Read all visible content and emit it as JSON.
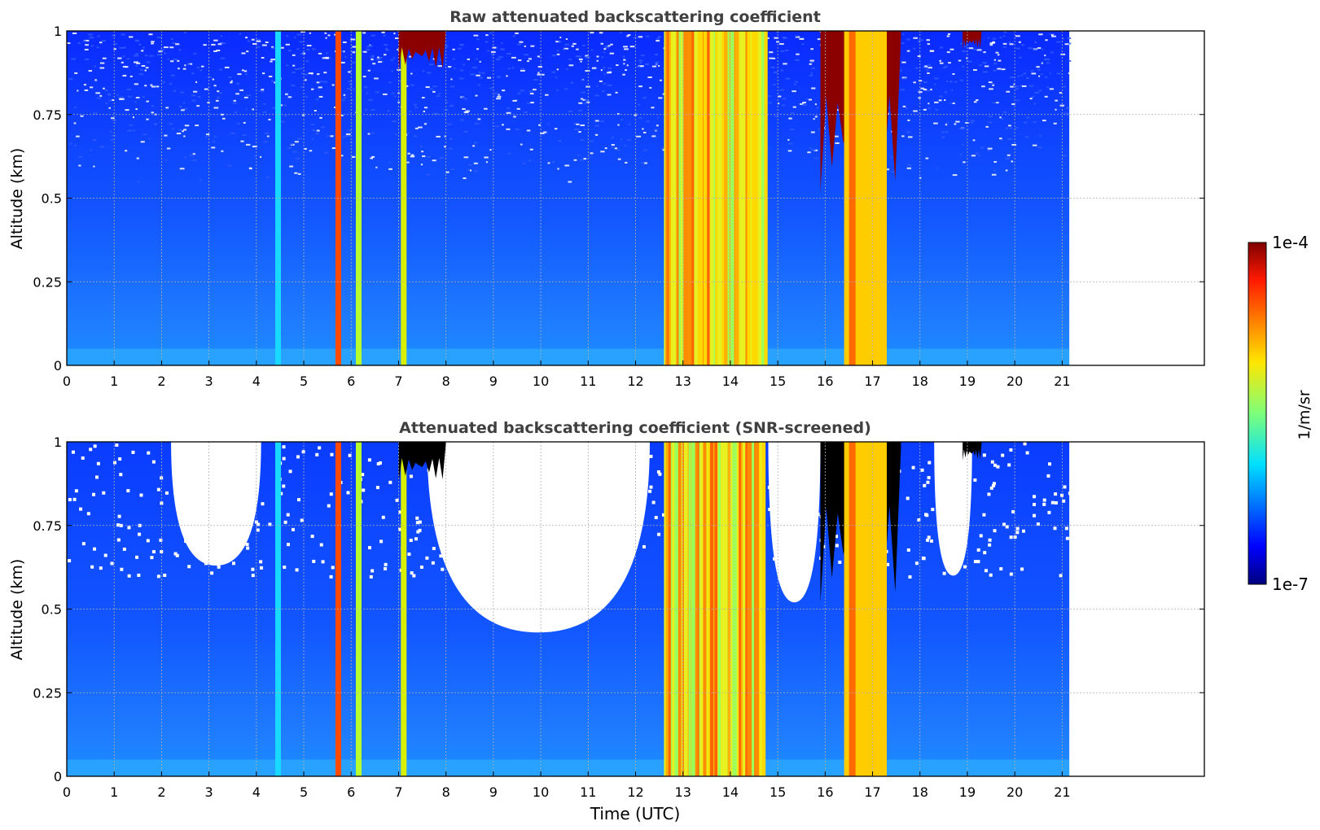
{
  "chart_data": [
    {
      "type": "heatmap",
      "title": "Raw attenuated backscattering coefficient",
      "ylabel": "Altitude (km)",
      "xlabel": "",
      "xlim": [
        0,
        24
      ],
      "ylim": [
        0,
        1
      ],
      "data_end_time": 21.15,
      "x_ticks": [
        "0",
        "1",
        "2",
        "3",
        "4",
        "5",
        "6",
        "7",
        "8",
        "9",
        "10",
        "11",
        "12",
        "13",
        "14",
        "15",
        "16",
        "17",
        "18",
        "19",
        "20",
        "21"
      ],
      "y_ticks": [
        "0",
        "0.25",
        "0.5",
        "0.75",
        "1"
      ],
      "grid": true,
      "screened": false,
      "features": [
        {
          "kind": "thin-column",
          "time": 4.45,
          "level": "cyan"
        },
        {
          "kind": "thin-column",
          "time": 5.72,
          "level": "orange-red"
        },
        {
          "kind": "thin-column",
          "time": 6.15,
          "level": "green-yellow"
        },
        {
          "kind": "thin-column",
          "time": 7.1,
          "level": "yellow-green"
        },
        {
          "kind": "top-cloud",
          "start": 7.0,
          "end": 8.0,
          "base_km": 0.85,
          "level": "dark-red"
        },
        {
          "kind": "thick-band",
          "start": 12.6,
          "end": 14.7,
          "level": "yellow-orange"
        },
        {
          "kind": "cloud-base",
          "start": 15.9,
          "end": 17.6,
          "base_km": 0.4,
          "level": "dark-red"
        },
        {
          "kind": "band",
          "start": 16.4,
          "end": 17.3,
          "level": "yellow-orange"
        },
        {
          "kind": "top-cloud",
          "start": 18.9,
          "end": 19.3,
          "base_km": 0.93,
          "level": "dark-red"
        }
      ]
    },
    {
      "type": "heatmap",
      "title": "Attenuated backscattering coefficient (SNR-screened)",
      "ylabel": "Altitude (km)",
      "xlabel": "Time (UTC)",
      "xlim": [
        0,
        24
      ],
      "ylim": [
        0,
        1
      ],
      "data_end_time": 21.15,
      "x_ticks": [
        "0",
        "1",
        "2",
        "3",
        "4",
        "5",
        "6",
        "7",
        "8",
        "9",
        "10",
        "11",
        "12",
        "13",
        "14",
        "15",
        "16",
        "17",
        "18",
        "19",
        "20",
        "21"
      ],
      "y_ticks": [
        "0",
        "0.25",
        "0.5",
        "0.75",
        "1"
      ],
      "grid": true,
      "screened": true,
      "features": [
        {
          "kind": "thin-column",
          "time": 4.45,
          "level": "cyan"
        },
        {
          "kind": "thin-column",
          "time": 5.72,
          "level": "orange-red"
        },
        {
          "kind": "thin-column",
          "time": 6.15,
          "level": "green-yellow"
        },
        {
          "kind": "thin-column",
          "time": 7.1,
          "level": "yellow-green"
        },
        {
          "kind": "top-cloud",
          "start": 7.0,
          "end": 8.0,
          "base_km": 0.85,
          "level": "black"
        },
        {
          "kind": "thick-band",
          "start": 12.6,
          "end": 14.7,
          "level": "yellow-orange"
        },
        {
          "kind": "cloud-base",
          "start": 15.9,
          "end": 17.6,
          "base_km": 0.4,
          "level": "black"
        },
        {
          "kind": "band",
          "start": 16.4,
          "end": 17.3,
          "level": "yellow-orange"
        },
        {
          "kind": "top-cloud",
          "start": 18.9,
          "end": 19.3,
          "base_km": 0.93,
          "level": "black"
        }
      ]
    }
  ],
  "colorbar": {
    "max_label": "1e-4",
    "min_label": "1e-7",
    "unit_label": "1/m/sr",
    "colormap": "jet",
    "scale": "log"
  },
  "colors": {
    "background_blue": "#1565ff",
    "cloud_red": "#8b0000",
    "screened_out": "#ffffff",
    "saturated": "#000000",
    "title_text": "#404040"
  }
}
